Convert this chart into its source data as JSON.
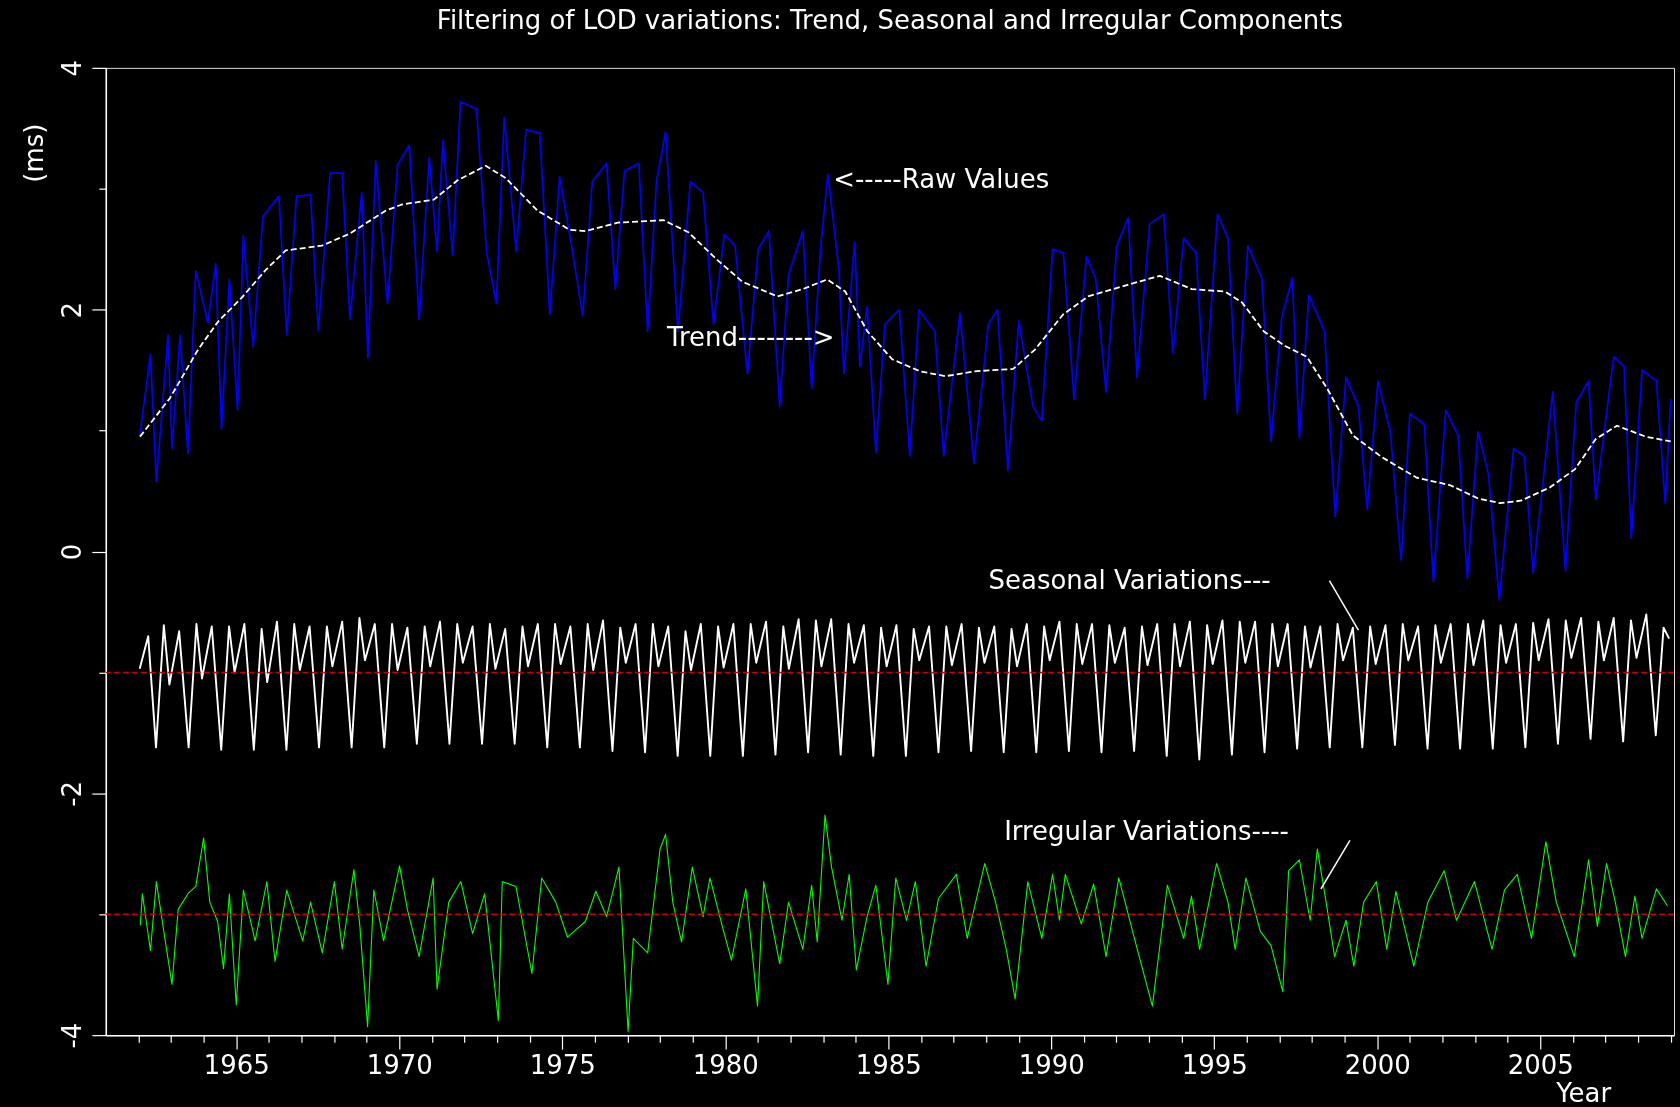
{
  "chart_data": {
    "type": "line",
    "title": "Filtering of LOD variations: Trend, Seasonal and Irregular Components",
    "xlabel": "Year",
    "ylabel": "(ms)",
    "xlim": [
      1961,
      2009.1
    ],
    "ylim": [
      -4,
      4
    ],
    "xticks": [
      {
        "value": 1962,
        "label": null
      },
      {
        "value": 1963,
        "label": null
      },
      {
        "value": 1964,
        "label": null
      },
      1965,
      {
        "value": 1966,
        "label": null
      },
      {
        "value": 1967,
        "label": null
      },
      {
        "value": 1968,
        "label": null
      },
      {
        "value": 1969,
        "label": null
      },
      1970,
      {
        "value": 1971,
        "label": null
      },
      {
        "value": 1972,
        "label": null
      },
      {
        "value": 1973,
        "label": null
      },
      {
        "value": 1974,
        "label": null
      },
      1975,
      {
        "value": 1976,
        "label": null
      },
      {
        "value": 1977,
        "label": null
      },
      {
        "value": 1978,
        "label": null
      },
      {
        "value": 1979,
        "label": null
      },
      1980,
      {
        "value": 1981,
        "label": null
      },
      {
        "value": 1982,
        "label": null
      },
      {
        "value": 1983,
        "label": null
      },
      {
        "value": 1984,
        "label": null
      },
      1985,
      {
        "value": 1986,
        "label": null
      },
      {
        "value": 1987,
        "label": null
      },
      {
        "value": 1988,
        "label": null
      },
      {
        "value": 1989,
        "label": null
      },
      1990,
      {
        "value": 1991,
        "label": null
      },
      {
        "value": 1992,
        "label": null
      },
      {
        "value": 1993,
        "label": null
      },
      {
        "value": 1994,
        "label": null
      },
      1995,
      {
        "value": 1996,
        "label": null
      },
      {
        "value": 1997,
        "label": null
      },
      {
        "value": 1998,
        "label": null
      },
      {
        "value": 1999,
        "label": null
      },
      2000,
      {
        "value": 2001,
        "label": null
      },
      {
        "value": 2002,
        "label": null
      },
      {
        "value": 2003,
        "label": null
      },
      {
        "value": 2004,
        "label": null
      },
      2005,
      {
        "value": 2006,
        "label": null
      },
      {
        "value": 2007,
        "label": null
      },
      {
        "value": 2008,
        "label": null
      },
      {
        "value": 2009,
        "label": null
      }
    ],
    "yticks": [
      -4,
      {
        "value": -3,
        "label": null
      },
      -2,
      {
        "value": -1,
        "label": null
      },
      0,
      {
        "value": 1,
        "label": null
      },
      2,
      {
        "value": 3,
        "label": null
      },
      4
    ],
    "series": [
      {
        "color": "#0000ff",
        "x": [
          1962.04,
          1962.37,
          1962.55,
          1962.91,
          1963.03,
          1963.28,
          1963.52,
          1963.76,
          1964.13,
          1964.37,
          1964.55,
          1964.79,
          1965.04,
          1965.22,
          1965.52,
          1965.82,
          1966.31,
          1966.55,
          1966.85,
          1967.28,
          1967.52,
          1967.88,
          1968.25,
          1968.49,
          1968.85,
          1969.04,
          1969.28,
          1969.64,
          1969.95,
          1970.31,
          1970.61,
          1970.92,
          1971.16,
          1971.34,
          1971.64,
          1971.88,
          1972.37,
          1972.68,
          1972.98,
          1973.22,
          1973.59,
          1973.89,
          1974.31,
          1974.62,
          1974.92,
          1975.28,
          1975.63,
          1975.92,
          1976.36,
          1976.63,
          1976.91,
          1977.35,
          1977.62,
          1977.89,
          1978.17,
          1978.55,
          1978.93,
          1979.32,
          1979.64,
          1979.97,
          1980.3,
          1980.68,
          1981.01,
          1981.34,
          1981.67,
          1981.94,
          1982.38,
          1982.65,
          1982.93,
          1983.15,
          1983.48,
          1983.64,
          1983.97,
          1984.13,
          1984.35,
          1984.62,
          1984.9,
          1985.34,
          1985.66,
          1985.94,
          1986.43,
          1986.7,
          1987.2,
          1987.63,
          1988.07,
          1988.35,
          1988.67,
          1989.0,
          1989.44,
          1989.71,
          1990.04,
          1990.37,
          1990.7,
          1991.08,
          1991.36,
          1991.68,
          1992.01,
          1992.36,
          1992.63,
          1993.02,
          1993.45,
          1993.73,
          1994.06,
          1994.44,
          1994.71,
          1995.1,
          1995.42,
          1995.7,
          1996.03,
          1996.46,
          1996.74,
          1997.07,
          1997.39,
          1997.61,
          1997.9,
          1998.38,
          1998.71,
          1999.04,
          1999.42,
          1999.69,
          2000.02,
          2000.4,
          2000.73,
          2001.0,
          2001.44,
          2001.72,
          2002.1,
          2002.48,
          2002.76,
          2003.09,
          2003.41,
          2003.74,
          2004.18,
          2004.51,
          2004.78,
          2005.38,
          2005.77,
          2006.1,
          2006.48,
          2006.7,
          2007.25,
          2007.57,
          2007.79,
          2008.12,
          2008.56,
          2008.83,
          2009.0
        ],
        "values": [
          0.95,
          1.63,
          0.58,
          1.79,
          0.85,
          1.79,
          0.81,
          2.32,
          1.89,
          2.38,
          1.01,
          2.25,
          1.17,
          2.61,
          1.69,
          2.77,
          2.94,
          1.79,
          2.94,
          2.95,
          1.83,
          3.13,
          3.13,
          1.92,
          2.97,
          1.6,
          3.23,
          2.05,
          3.2,
          3.36,
          1.92,
          3.26,
          2.48,
          3.4,
          2.45,
          3.72,
          3.66,
          2.48,
          2.05,
          3.59,
          2.48,
          3.49,
          3.46,
          1.96,
          3.1,
          2.54,
          1.95,
          3.06,
          3.21,
          2.17,
          3.15,
          3.21,
          1.82,
          3.06,
          3.47,
          1.82,
          3.06,
          2.97,
          1.88,
          2.62,
          2.53,
          1.47,
          2.5,
          2.65,
          1.2,
          2.29,
          2.65,
          1.35,
          2.53,
          3.12,
          2.35,
          1.47,
          2.56,
          1.53,
          2.03,
          0.82,
          1.88,
          2.0,
          0.79,
          2.0,
          1.82,
          0.79,
          1.97,
          0.73,
          1.88,
          2.0,
          0.67,
          1.91,
          1.2,
          1.08,
          2.5,
          2.47,
          1.26,
          2.44,
          2.26,
          1.32,
          2.53,
          2.76,
          1.44,
          2.71,
          2.79,
          1.64,
          2.59,
          2.47,
          1.26,
          2.79,
          2.59,
          1.14,
          2.53,
          2.26,
          0.91,
          1.94,
          2.26,
          0.94,
          2.12,
          1.82,
          0.29,
          1.44,
          1.2,
          0.35,
          1.41,
          0.99,
          -0.07,
          1.14,
          1.05,
          -0.25,
          1.17,
          0.96,
          -0.22,
          0.99,
          0.64,
          -0.4,
          0.85,
          0.79,
          -0.18,
          1.32,
          -0.16,
          1.23,
          1.41,
          0.43,
          1.61,
          1.53,
          0.11,
          1.5,
          1.41,
          0.4,
          1.26
        ]
      },
      {
        "color": "#ffffff",
        "line_style": "dashed",
        "x": [
          1962.05,
          1962.97,
          1963.83,
          1964.44,
          1965.17,
          1965.91,
          1966.52,
          1967.63,
          1968.49,
          1969.59,
          1970.08,
          1971.06,
          1971.79,
          1972.65,
          1973.26,
          1974.24,
          1975.23,
          1975.72,
          1976.7,
          1978.11,
          1978.87,
          1979.76,
          1980.53,
          1981.6,
          1982.37,
          1983.13,
          1983.68,
          1984.36,
          1985.12,
          1985.98,
          1986.75,
          1987.63,
          1988.83,
          1989.5,
          1990.36,
          1991.13,
          1992.66,
          1993.33,
          1994.31,
          1995.33,
          1995.85,
          1996.52,
          1997.17,
          1997.84,
          1998.48,
          1999.25,
          2000.14,
          2001.21,
          2002.22,
          2003.08,
          2003.76,
          2004.4,
          2005.29,
          2006.06,
          2006.7,
          2007.35,
          2008.23,
          2009.0
        ],
        "values": [
          0.95,
          1.27,
          1.67,
          1.9,
          2.1,
          2.33,
          2.49,
          2.53,
          2.63,
          2.82,
          2.87,
          2.91,
          3.07,
          3.19,
          3.09,
          2.82,
          2.66,
          2.65,
          2.72,
          2.74,
          2.64,
          2.41,
          2.23,
          2.11,
          2.17,
          2.25,
          2.15,
          1.82,
          1.59,
          1.49,
          1.45,
          1.49,
          1.51,
          1.67,
          1.96,
          2.11,
          2.23,
          2.28,
          2.17,
          2.15,
          2.06,
          1.82,
          1.7,
          1.61,
          1.34,
          0.96,
          0.78,
          0.61,
          0.55,
          0.44,
          0.4,
          0.42,
          0.53,
          0.68,
          0.93,
          1.04,
          0.95,
          0.91
        ]
      },
      {
        "color": "#ffffff",
        "x": [
          1962.04,
          1962.3,
          1962.54,
          1962.78,
          1962.95,
          1963.25,
          1963.54,
          1963.78,
          1963.95,
          1964.25,
          1964.54,
          1964.78,
          1964.95,
          1965.25,
          1965.54,
          1965.78,
          1965.95,
          1966.25,
          1966.54,
          1966.78,
          1966.95,
          1967.25,
          1967.54,
          1967.78,
          1967.95,
          1968.25,
          1968.54,
          1968.78,
          1968.95,
          1969.25,
          1969.54,
          1969.78,
          1969.95,
          1970.25,
          1970.54,
          1970.78,
          1970.95,
          1971.25,
          1971.54,
          1971.78,
          1971.95,
          1972.25,
          1972.54,
          1972.78,
          1972.95,
          1973.25,
          1973.54,
          1973.78,
          1973.95,
          1974.25,
          1974.54,
          1974.78,
          1974.95,
          1975.25,
          1975.54,
          1975.78,
          1975.95,
          1976.25,
          1976.54,
          1976.78,
          1976.95,
          1977.25,
          1977.54,
          1977.78,
          1977.95,
          1978.25,
          1978.54,
          1978.78,
          1978.95,
          1979.25,
          1979.54,
          1979.78,
          1979.95,
          1980.25,
          1980.54,
          1980.78,
          1980.95,
          1981.25,
          1981.54,
          1981.78,
          1981.95,
          1982.25,
          1982.54,
          1982.78,
          1982.95,
          1983.25,
          1983.54,
          1983.78,
          1983.95,
          1984.25,
          1984.54,
          1984.78,
          1984.95,
          1985.25,
          1985.54,
          1985.78,
          1985.95,
          1986.25,
          1986.54,
          1986.78,
          1986.95,
          1987.25,
          1987.54,
          1987.78,
          1987.95,
          1988.25,
          1988.54,
          1988.78,
          1988.95,
          1989.25,
          1989.54,
          1989.78,
          1989.95,
          1990.25,
          1990.54,
          1990.78,
          1990.95,
          1991.25,
          1991.54,
          1991.78,
          1991.95,
          1992.25,
          1992.54,
          1992.78,
          1992.95,
          1993.25,
          1993.54,
          1993.78,
          1993.95,
          1994.25,
          1994.54,
          1994.78,
          1994.95,
          1995.25,
          1995.54,
          1995.78,
          1995.95,
          1996.25,
          1996.54,
          1996.78,
          1996.95,
          1997.25,
          1997.54,
          1997.78,
          1997.95,
          1998.25,
          1998.54,
          1998.78,
          1998.95,
          1999.25,
          1999.54,
          1999.78,
          1999.95,
          2000.25,
          2000.54,
          2000.78,
          2000.95,
          2001.25,
          2001.54,
          2001.78,
          2001.95,
          2002.25,
          2002.54,
          2002.78,
          2002.95,
          2003.25,
          2003.54,
          2003.78,
          2003.95,
          2004.25,
          2004.54,
          2004.78,
          2004.95,
          2005.25,
          2005.54,
          2005.78,
          2005.95,
          2006.25,
          2006.54,
          2006.78,
          2006.95,
          2007.25,
          2007.54,
          2007.78,
          2007.95,
          2008.25,
          2008.54,
          2008.78,
          2008.95
        ],
        "values": [
          -0.97,
          -0.7,
          -1.62,
          -0.61,
          -1.1,
          -0.66,
          -1.62,
          -0.6,
          -1.05,
          -0.62,
          -1.64,
          -0.62,
          -1.0,
          -0.6,
          -1.64,
          -0.64,
          -1.08,
          -0.58,
          -1.64,
          -0.6,
          -0.98,
          -0.62,
          -1.62,
          -0.62,
          -0.95,
          -0.58,
          -1.62,
          -0.55,
          -0.9,
          -0.6,
          -1.62,
          -0.6,
          -0.98,
          -0.63,
          -1.59,
          -0.62,
          -0.95,
          -0.58,
          -1.59,
          -0.6,
          -0.92,
          -0.62,
          -1.59,
          -0.6,
          -0.97,
          -0.64,
          -1.59,
          -0.62,
          -0.95,
          -0.6,
          -1.62,
          -0.6,
          -0.93,
          -0.62,
          -1.62,
          -0.6,
          -0.98,
          -0.57,
          -1.65,
          -0.63,
          -0.92,
          -0.6,
          -1.66,
          -0.6,
          -0.95,
          -0.62,
          -1.69,
          -0.66,
          -0.98,
          -0.6,
          -1.69,
          -0.62,
          -0.96,
          -0.6,
          -1.69,
          -0.6,
          -0.92,
          -0.58,
          -1.68,
          -0.62,
          -0.97,
          -0.56,
          -1.66,
          -0.57,
          -0.95,
          -0.56,
          -1.68,
          -0.6,
          -0.92,
          -0.61,
          -1.69,
          -0.63,
          -0.95,
          -0.61,
          -1.69,
          -0.64,
          -0.9,
          -0.62,
          -1.66,
          -0.62,
          -0.94,
          -0.6,
          -1.65,
          -0.63,
          -0.92,
          -0.62,
          -1.66,
          -0.64,
          -0.95,
          -0.6,
          -1.66,
          -0.62,
          -0.9,
          -0.58,
          -1.65,
          -0.6,
          -0.93,
          -0.6,
          -1.66,
          -0.61,
          -0.92,
          -0.63,
          -1.65,
          -0.62,
          -0.94,
          -0.6,
          -1.69,
          -0.6,
          -0.95,
          -0.58,
          -1.72,
          -0.61,
          -0.93,
          -0.57,
          -1.68,
          -0.58,
          -0.92,
          -0.58,
          -1.66,
          -0.6,
          -0.95,
          -0.6,
          -1.63,
          -0.62,
          -0.96,
          -0.62,
          -1.62,
          -0.6,
          -0.9,
          -0.63,
          -1.62,
          -0.62,
          -0.93,
          -0.61,
          -1.6,
          -0.6,
          -0.9,
          -0.62,
          -1.63,
          -0.61,
          -0.92,
          -0.6,
          -1.63,
          -0.6,
          -0.94,
          -0.57,
          -1.63,
          -0.61,
          -0.92,
          -0.6,
          -1.62,
          -0.59,
          -0.9,
          -0.56,
          -1.59,
          -0.57,
          -0.88,
          -0.55,
          -1.55,
          -0.58,
          -0.9,
          -0.55,
          -1.57,
          -0.57,
          -0.88,
          -0.52,
          -1.52,
          -0.63,
          -0.72
        ]
      },
      {
        "color": "#00ff00",
        "x": [
          1962.06,
          1962.12,
          1962.37,
          1962.55,
          1962.79,
          1963.03,
          1963.22,
          1963.52,
          1963.76,
          1964.0,
          1964.19,
          1964.43,
          1964.61,
          1964.79,
          1965.0,
          1965.22,
          1965.58,
          1965.94,
          1966.19,
          1966.55,
          1967.04,
          1967.28,
          1967.64,
          1968.01,
          1968.25,
          1968.61,
          1968.79,
          1969.03,
          1969.22,
          1969.52,
          1970.01,
          1970.25,
          1970.61,
          1971.04,
          1971.16,
          1971.52,
          1971.89,
          1972.25,
          1972.62,
          1973.04,
          1973.16,
          1973.58,
          1974.07,
          1974.37,
          1974.8,
          1975.16,
          1975.71,
          1976.03,
          1976.36,
          1976.74,
          1977.02,
          1977.18,
          1977.62,
          1978.0,
          1978.17,
          1978.39,
          1978.66,
          1978.99,
          1979.32,
          1979.53,
          1979.92,
          1980.19,
          1980.63,
          1980.99,
          1981.18,
          1981.67,
          1981.94,
          1982.38,
          1982.65,
          1982.82,
          1983.06,
          1983.26,
          1983.58,
          1983.8,
          1984.02,
          1984.35,
          1984.62,
          1984.99,
          1985.23,
          1985.56,
          1985.83,
          1986.16,
          1986.54,
          1987.09,
          1987.42,
          1987.96,
          1988.29,
          1988.62,
          1988.89,
          1989.28,
          1989.71,
          1990.04,
          1990.25,
          1990.43,
          1990.92,
          1991.3,
          1991.68,
          1992.07,
          1992.58,
          1993.1,
          1993.56,
          1994.06,
          1994.3,
          1994.55,
          1995.07,
          1995.42,
          1995.64,
          1995.97,
          1996.41,
          1996.74,
          1997.1,
          1997.28,
          1997.61,
          1997.94,
          1998.16,
          1998.43,
          1998.69,
          1999.04,
          1999.28,
          1999.58,
          1999.97,
          2000.29,
          2000.57,
          2001.12,
          2001.55,
          2002.05,
          2002.43,
          2002.98,
          2003.52,
          2003.9,
          2004.29,
          2004.73,
          2005.17,
          2005.49,
          2006.04,
          2006.48,
          2006.75,
          2007.03,
          2007.3,
          2007.61,
          2007.9,
          2008.12,
          2008.56,
          2008.9
        ],
        "values": [
          -3.09,
          -2.83,
          -3.3,
          -2.73,
          -3.16,
          -3.58,
          -2.96,
          -2.83,
          -2.77,
          -2.37,
          -2.9,
          -3.06,
          -3.45,
          -2.83,
          -3.75,
          -2.8,
          -3.22,
          -2.73,
          -3.39,
          -2.8,
          -3.22,
          -2.9,
          -3.32,
          -2.73,
          -3.29,
          -2.63,
          -3.09,
          -3.93,
          -2.8,
          -3.22,
          -2.6,
          -2.96,
          -3.35,
          -2.7,
          -3.62,
          -2.9,
          -2.73,
          -3.16,
          -2.83,
          -3.88,
          -2.73,
          -2.77,
          -3.49,
          -2.7,
          -2.9,
          -3.19,
          -3.06,
          -2.81,
          -3.02,
          -2.61,
          -3.97,
          -3.2,
          -3.32,
          -2.46,
          -2.34,
          -2.9,
          -3.23,
          -2.61,
          -3.02,
          -2.7,
          -3.11,
          -3.38,
          -2.79,
          -3.76,
          -2.73,
          -3.41,
          -2.9,
          -3.29,
          -2.76,
          -3.23,
          -2.18,
          -2.61,
          -3.05,
          -2.67,
          -3.46,
          -3.02,
          -2.76,
          -3.58,
          -2.7,
          -3.05,
          -2.73,
          -3.43,
          -2.87,
          -2.67,
          -3.2,
          -2.58,
          -2.9,
          -3.29,
          -3.7,
          -2.73,
          -3.2,
          -2.67,
          -3.05,
          -2.67,
          -3.08,
          -2.75,
          -3.35,
          -2.7,
          -3.23,
          -3.76,
          -2.76,
          -3.2,
          -2.85,
          -3.29,
          -2.58,
          -2.9,
          -3.29,
          -2.7,
          -3.14,
          -3.26,
          -3.64,
          -2.64,
          -2.55,
          -3.05,
          -2.46,
          -2.9,
          -3.35,
          -3.05,
          -3.43,
          -2.9,
          -2.73,
          -3.29,
          -2.81,
          -3.43,
          -2.9,
          -2.64,
          -3.05,
          -2.73,
          -3.29,
          -2.8,
          -2.67,
          -3.2,
          -2.4,
          -2.9,
          -3.35,
          -2.55,
          -3.1,
          -2.58,
          -2.9,
          -3.35,
          -2.85,
          -3.2,
          -2.79,
          -2.93
        ]
      },
      {
        "color": "#ffffff",
        "x": [
          1998.53,
          1999.42
        ],
        "values": [
          -0.24,
          -0.65
        ]
      },
      {
        "color": "#ffffff",
        "x": [
          1998.27,
          1999.16
        ],
        "values": [
          -2.79,
          -2.39
        ]
      }
    ],
    "ref_lines": [
      {
        "axis": "y",
        "value": -1,
        "color": "#c80000",
        "line_style": "dashed"
      },
      {
        "axis": "y",
        "value": -3,
        "color": "#c80000",
        "line_style": "dashed"
      }
    ],
    "annotations": [
      {
        "text": "<-----Raw Values",
        "x": 1983.31,
        "y": 3.07
      },
      {
        "text": "Trend-------->",
        "x": 1984.36,
        "y": 1.82
      },
      "Seasonal Variations---",
      {
        "text": "Irregular Variations----",
        "x": 1998.27,
        "y": -2.79
      }
    ]
  }
}
